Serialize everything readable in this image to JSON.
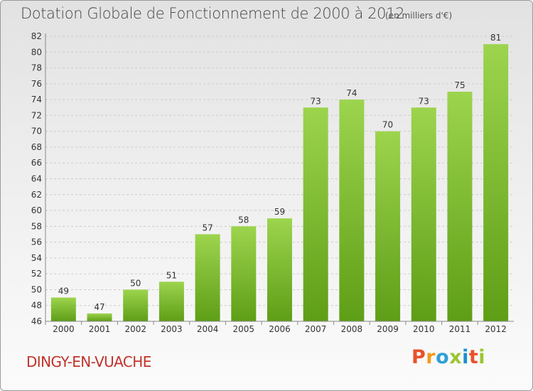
{
  "title": "Dotation Globale de Fonctionnement de 2000 à 2012",
  "unit_note": "(en milliers d'€)",
  "commune": "DINGY-EN-VUACHE",
  "brand": {
    "letters": [
      "P",
      "r",
      "o",
      "x",
      "i",
      "t",
      "i"
    ],
    "colors": [
      "#e8512b",
      "#f39a1e",
      "#2f9fd8",
      "#9cc531",
      "#1b8fce",
      "#e8512b",
      "#9cc531"
    ]
  },
  "colors": {
    "bar_light": "#9dd44e",
    "bar_dark": "#5e9e16",
    "grid": "#cccccc",
    "axis": "#888888"
  },
  "chart_data": {
    "type": "bar",
    "categories": [
      "2000",
      "2001",
      "2002",
      "2003",
      "2004",
      "2005",
      "2006",
      "2007",
      "2008",
      "2009",
      "2010",
      "2011",
      "2012"
    ],
    "values": [
      49,
      47,
      50,
      51,
      57,
      58,
      59,
      73,
      74,
      70,
      73,
      75,
      81
    ],
    "ylim": [
      46,
      82
    ],
    "yticks": [
      46,
      48,
      50,
      52,
      54,
      56,
      58,
      60,
      62,
      64,
      66,
      68,
      70,
      72,
      74,
      76,
      78,
      80,
      82
    ],
    "grid": true,
    "legend": "none"
  }
}
